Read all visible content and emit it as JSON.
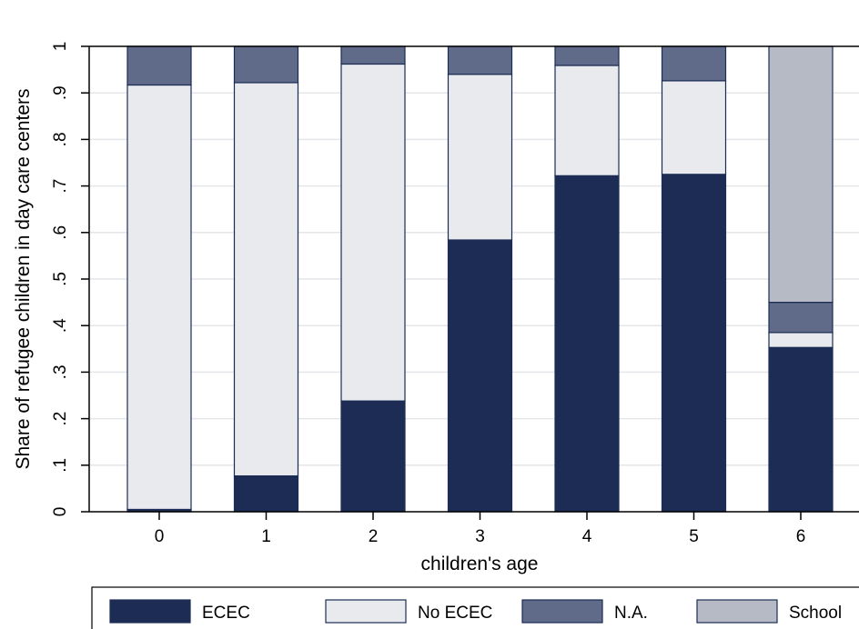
{
  "chart_data": {
    "type": "bar",
    "stacked": true,
    "title": "",
    "xlabel": "children's age",
    "ylabel": "Share of refugee children in day care centers",
    "categories": [
      "0",
      "1",
      "2",
      "3",
      "4",
      "5",
      "6"
    ],
    "ylim": [
      0,
      1
    ],
    "yticks": [
      0,
      0.1,
      0.2,
      0.3,
      0.4,
      0.5,
      0.6,
      0.7,
      0.8,
      0.9,
      1
    ],
    "ytick_labels": [
      "0",
      ".1",
      ".2",
      ".3",
      ".4",
      ".5",
      ".6",
      ".7",
      ".8",
      ".9",
      "1"
    ],
    "grid": true,
    "legend_position": "bottom",
    "series": [
      {
        "name": "ECEC",
        "color": "#1c2c54",
        "values": [
          0.005,
          0.077,
          0.238,
          0.584,
          0.722,
          0.725,
          0.353
        ]
      },
      {
        "name": "No ECEC",
        "color": "#e8eaee",
        "values": [
          0.912,
          0.845,
          0.724,
          0.356,
          0.237,
          0.201,
          0.032
        ]
      },
      {
        "name": "N.A.",
        "color": "#5f6b89",
        "values": [
          0.083,
          0.078,
          0.038,
          0.06,
          0.041,
          0.074,
          0.065
        ]
      },
      {
        "name": "School",
        "color": "#b6bac5",
        "values": [
          0,
          0,
          0,
          0,
          0,
          0,
          0.55
        ]
      }
    ]
  }
}
